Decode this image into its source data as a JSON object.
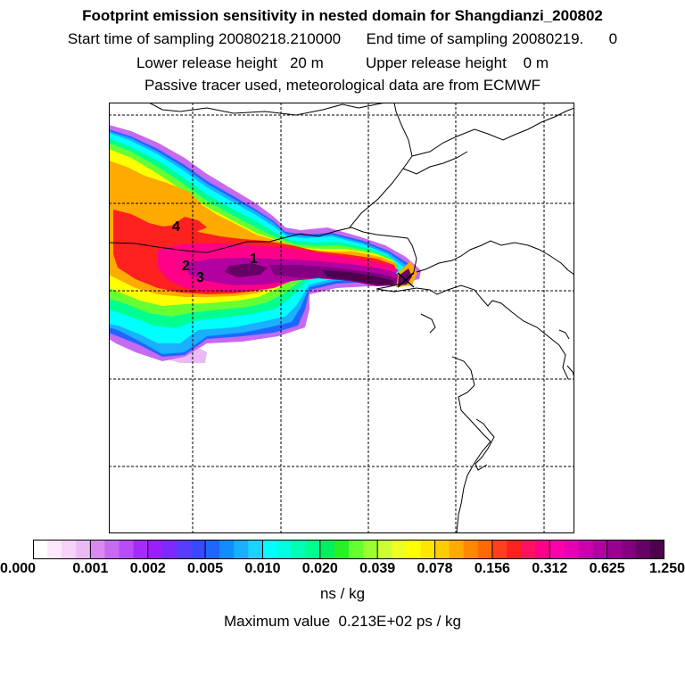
{
  "header": {
    "title": "Footprint emission sensitivity in nested domain for Shangdianzi_200802",
    "sampling_line": "Start time of sampling 20080218.210000      End time of sampling 20080219.      0",
    "release_line": "Lower release height   20 m          Upper release height    0 m",
    "tracer_line": "Passive tracer used, meteorological data are from ECMWF"
  },
  "map": {
    "labels": [
      {
        "text": "1"
      },
      {
        "text": "2"
      },
      {
        "text": "3"
      },
      {
        "text": "4"
      }
    ],
    "receptor_symbol": "x-marker"
  },
  "legend": {
    "tick_labels": [
      "0.000",
      "0.001",
      "0.002",
      "0.005",
      "0.010",
      "0.020",
      "0.039",
      "0.078",
      "0.156",
      "0.312",
      "0.625",
      "1.250"
    ],
    "colors": [
      "#ffffff",
      "#fbe8fb",
      "#f5d2f7",
      "#eabaf5",
      "#d88af2",
      "#c66af2",
      "#b84cf5",
      "#a52cf8",
      "#9a1ff8",
      "#7d2aff",
      "#5a3cff",
      "#3a48ff",
      "#1f66ff",
      "#148cff",
      "#18b0ff",
      "#1ad4ff",
      "#00ffff",
      "#00ffe0",
      "#00ffb4",
      "#00ff90",
      "#00f060",
      "#28f028",
      "#66ff33",
      "#99ff33",
      "#ccff33",
      "#eeff22",
      "#ffff00",
      "#ffe600",
      "#ffcc00",
      "#ffaa00",
      "#ff8800",
      "#ff6a00",
      "#ff4020",
      "#ff2020",
      "#ff1060",
      "#ff0088",
      "#ff00aa",
      "#e800b0",
      "#cc00aa",
      "#b300a0",
      "#9a0090",
      "#800080",
      "#660066",
      "#4d004d"
    ],
    "units": "ns / kg",
    "max_value_text": "Maximum value  0.213E+02 ps / kg"
  }
}
